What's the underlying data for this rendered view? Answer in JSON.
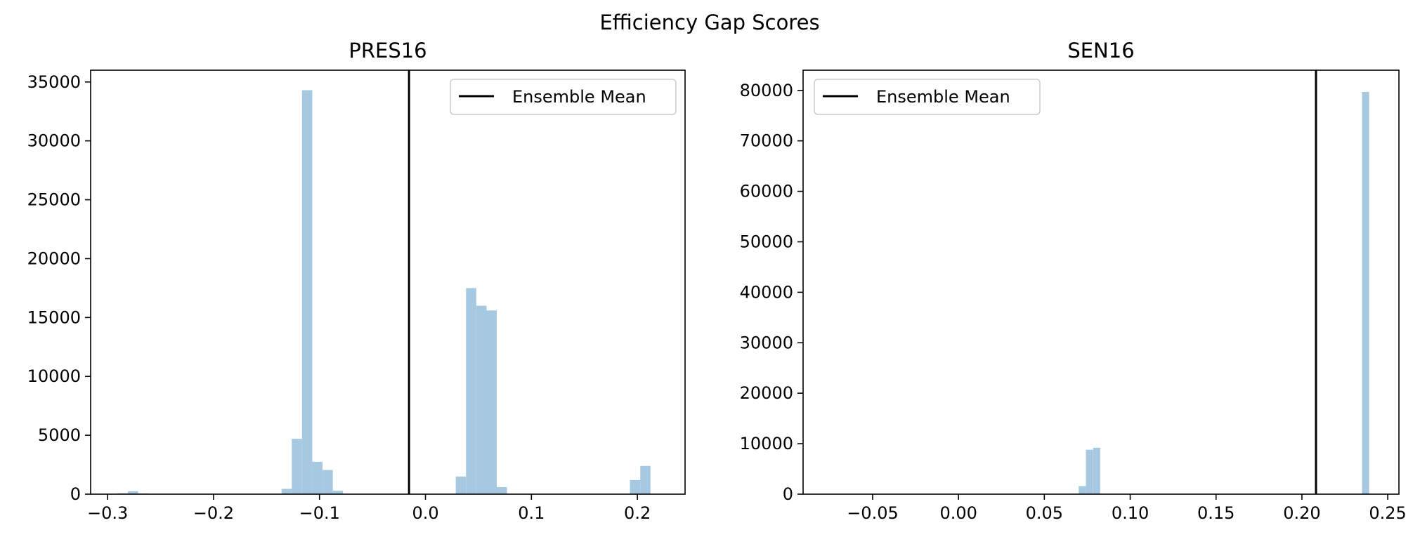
{
  "figure": {
    "title": "Efficiency Gap Scores"
  },
  "colors": {
    "bars": "#a6c9e1",
    "mean_line": "#000000",
    "axes": "#000000",
    "legend_border": "#cccccc"
  },
  "chart_data": [
    {
      "type": "bar",
      "subtype": "histogram",
      "title": "PRES16",
      "xlabel": "",
      "ylabel": "",
      "xlim": [
        -0.316,
        0.245
      ],
      "ylim": [
        0,
        36000
      ],
      "xticks": [
        -0.3,
        -0.2,
        -0.1,
        0.0,
        0.1,
        0.2
      ],
      "xtick_labels": [
        "−0.3",
        "−0.2",
        "−0.1",
        "0.0",
        "0.1",
        "0.2"
      ],
      "yticks": [
        0,
        5000,
        10000,
        15000,
        20000,
        25000,
        30000,
        35000
      ],
      "ytick_labels": [
        "0",
        "5000",
        "10000",
        "15000",
        "20000",
        "25000",
        "30000",
        "35000"
      ],
      "bin_width": 0.00967,
      "bins": [
        {
          "x0": -0.2906,
          "count": 80
        },
        {
          "x0": -0.2809,
          "count": 250
        },
        {
          "x0": -0.2712,
          "count": 60
        },
        {
          "x0": -0.1358,
          "count": 450
        },
        {
          "x0": -0.1262,
          "count": 4700
        },
        {
          "x0": -0.1165,
          "count": 34300
        },
        {
          "x0": -0.1068,
          "count": 2750
        },
        {
          "x0": -0.0971,
          "count": 2050
        },
        {
          "x0": -0.0875,
          "count": 300
        },
        {
          "x0": 0.0286,
          "count": 1500
        },
        {
          "x0": 0.0383,
          "count": 17500
        },
        {
          "x0": 0.048,
          "count": 16000
        },
        {
          "x0": 0.0576,
          "count": 15600
        },
        {
          "x0": 0.0673,
          "count": 600
        },
        {
          "x0": 0.193,
          "count": 1200
        },
        {
          "x0": 0.2027,
          "count": 2400
        }
      ],
      "ensemble_mean": -0.0155,
      "legend": {
        "entries": [
          "Ensemble Mean"
        ],
        "placement": "upper right"
      },
      "grid": false
    },
    {
      "type": "bar",
      "subtype": "histogram",
      "title": "SEN16",
      "xlabel": "",
      "ylabel": "",
      "xlim": [
        -0.0905,
        0.2565
      ],
      "ylim": [
        0,
        84000
      ],
      "xticks": [
        -0.05,
        0.0,
        0.05,
        0.1,
        0.15,
        0.2,
        0.25
      ],
      "xtick_labels": [
        "−0.05",
        "0.00",
        "0.05",
        "0.10",
        "0.15",
        "0.20",
        "0.25"
      ],
      "yticks": [
        0,
        10000,
        20000,
        30000,
        40000,
        50000,
        60000,
        70000,
        80000
      ],
      "ytick_labels": [
        "0",
        "10000",
        "20000",
        "30000",
        "40000",
        "50000",
        "60000",
        "70000",
        "80000"
      ],
      "bin_width": 0.00415,
      "bins": [
        {
          "x0": 0.07,
          "count": 1600
        },
        {
          "x0": 0.0742,
          "count": 8800
        },
        {
          "x0": 0.0784,
          "count": 9200
        },
        {
          "x0": 0.235,
          "count": 79700
        }
      ],
      "ensemble_mean": 0.2082,
      "legend": {
        "entries": [
          "Ensemble Mean"
        ],
        "placement": "upper left"
      },
      "grid": false
    }
  ]
}
